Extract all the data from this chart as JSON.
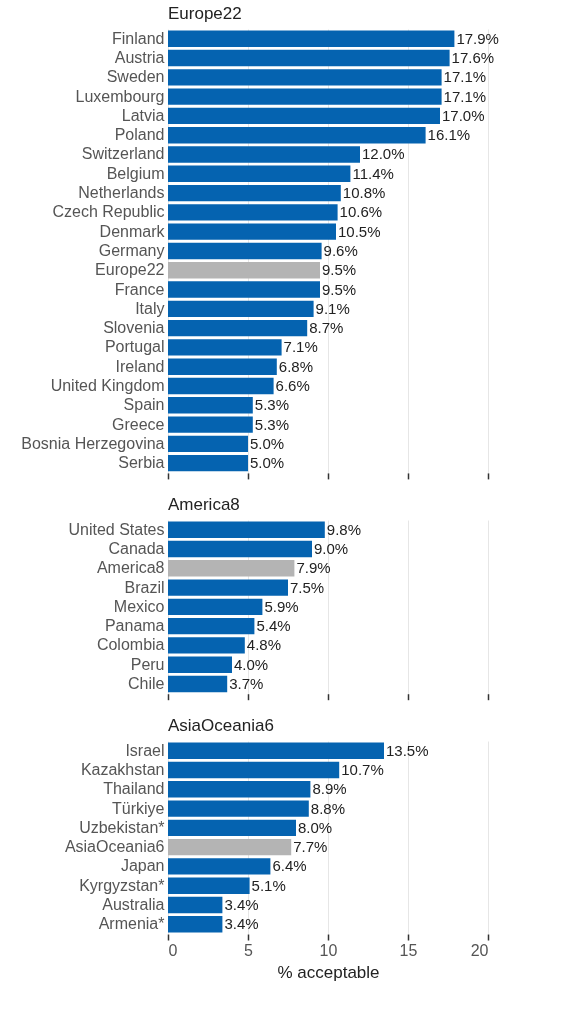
{
  "chart_data": [
    {
      "type": "bar",
      "orientation": "horizontal",
      "title": "Europe22",
      "categories": [
        "Finland",
        "Austria",
        "Sweden",
        "Luxembourg",
        "Latvia",
        "Poland",
        "Switzerland",
        "Belgium",
        "Netherlands",
        "Czech Republic",
        "Denmark",
        "Germany",
        "Europe22",
        "France",
        "Italy",
        "Slovenia",
        "Portugal",
        "Ireland",
        "United Kingdom",
        "Spain",
        "Greece",
        "Bosnia Herzegovina",
        "Serbia"
      ],
      "values": [
        17.9,
        17.6,
        17.1,
        17.1,
        17.0,
        16.1,
        12.0,
        11.4,
        10.8,
        10.6,
        10.5,
        9.6,
        9.5,
        9.5,
        9.1,
        8.7,
        7.1,
        6.8,
        6.6,
        5.3,
        5.3,
        5.0,
        5.0
      ],
      "value_labels": [
        "17.9%",
        "17.6%",
        "17.1%",
        "17.1%",
        "17.0%",
        "16.1%",
        "12.0%",
        "11.4%",
        "10.8%",
        "10.6%",
        "10.5%",
        "9.6%",
        "9.5%",
        "9.5%",
        "9.1%",
        "8.7%",
        "7.1%",
        "6.8%",
        "6.6%",
        "5.3%",
        "5.3%",
        "5.0%",
        "5.0%"
      ],
      "colors": [
        "#0563b0",
        "#0563b0",
        "#0563b0",
        "#0563b0",
        "#0563b0",
        "#0563b0",
        "#0563b0",
        "#0563b0",
        "#0563b0",
        "#0563b0",
        "#0563b0",
        "#0563b0",
        "#b4b4b4",
        "#0563b0",
        "#0563b0",
        "#0563b0",
        "#0563b0",
        "#0563b0",
        "#0563b0",
        "#0563b0",
        "#0563b0",
        "#0563b0",
        "#0563b0"
      ],
      "xlim": [
        0,
        20
      ],
      "xticks": [
        0,
        5,
        10,
        15,
        20
      ],
      "grid": "x",
      "tick_labels": "y"
    },
    {
      "type": "bar",
      "orientation": "horizontal",
      "title": "America8",
      "categories": [
        "United States",
        "Canada",
        "America8",
        "Brazil",
        "Mexico",
        "Panama",
        "Colombia",
        "Peru",
        "Chile"
      ],
      "values": [
        9.8,
        9.0,
        7.9,
        7.5,
        5.9,
        5.4,
        4.8,
        4.0,
        3.7
      ],
      "value_labels": [
        "9.8%",
        "9.0%",
        "7.9%",
        "7.5%",
        "5.9%",
        "5.4%",
        "4.8%",
        "4.0%",
        "3.7%"
      ],
      "colors": [
        "#0563b0",
        "#0563b0",
        "#b4b4b4",
        "#0563b0",
        "#0563b0",
        "#0563b0",
        "#0563b0",
        "#0563b0",
        "#0563b0"
      ],
      "xlim": [
        0,
        20
      ],
      "xticks": [
        0,
        5,
        10,
        15,
        20
      ],
      "grid": "x",
      "tick_labels": "y"
    },
    {
      "type": "bar",
      "orientation": "horizontal",
      "title": "AsiaOceania6",
      "xlabel": "% acceptable",
      "categories": [
        "Israel",
        "Kazakhstan",
        "Thailand",
        "Türkiye",
        "Uzbekistan*",
        "AsiaOceania6",
        "Japan",
        "Kyrgyzstan*",
        "Australia",
        "Armenia*"
      ],
      "values": [
        13.5,
        10.7,
        8.9,
        8.8,
        8.0,
        7.7,
        6.4,
        5.1,
        3.4,
        3.4
      ],
      "value_labels": [
        "13.5%",
        "10.7%",
        "8.9%",
        "8.8%",
        "8.0%",
        "7.7%",
        "6.4%",
        "5.1%",
        "3.4%",
        "3.4%"
      ],
      "colors": [
        "#0563b0",
        "#0563b0",
        "#0563b0",
        "#0563b0",
        "#0563b0",
        "#b4b4b4",
        "#0563b0",
        "#0563b0",
        "#0563b0",
        "#0563b0"
      ],
      "xlim": [
        0,
        20
      ],
      "xticks": [
        0,
        5,
        10,
        15,
        20
      ],
      "grid": "x"
    }
  ]
}
